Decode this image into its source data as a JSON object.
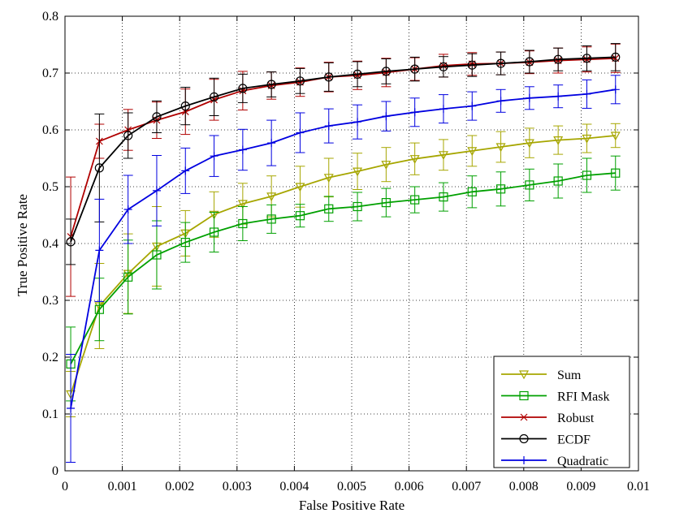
{
  "chart_data": {
    "type": "line",
    "xlabel": "False Positive Rate",
    "ylabel": "True Positive Rate",
    "xlim": [
      0,
      0.01
    ],
    "ylim": [
      0,
      0.8
    ],
    "xticks": [
      "0",
      "0.001",
      "0.002",
      "0.003",
      "0.004",
      "0.005",
      "0.006",
      "0.007",
      "0.008",
      "0.009",
      "0.01"
    ],
    "yticks": [
      "0",
      "0.1",
      "0.2",
      "0.3",
      "0.4",
      "0.5",
      "0.6",
      "0.7",
      "0.8"
    ],
    "grid": true,
    "legend_position": "bottom-right",
    "x": [
      0.0001,
      0.0006,
      0.0011,
      0.0016,
      0.0021,
      0.0026,
      0.0031,
      0.0036,
      0.0041,
      0.0046,
      0.0051,
      0.0056,
      0.0061,
      0.0066,
      0.0071,
      0.0076,
      0.0081,
      0.0086,
      0.0091,
      0.0096
    ],
    "series": [
      {
        "name": "Sum",
        "color": "#a6a600",
        "marker": "triangle-down",
        "values": [
          0.135,
          0.29,
          0.347,
          0.395,
          0.418,
          0.451,
          0.47,
          0.483,
          0.5,
          0.516,
          0.527,
          0.539,
          0.549,
          0.556,
          0.563,
          0.57,
          0.577,
          0.582,
          0.585,
          0.59
        ],
        "errors": [
          0.04,
          0.075,
          0.07,
          0.07,
          0.04,
          0.04,
          0.036,
          0.036,
          0.036,
          0.034,
          0.032,
          0.03,
          0.028,
          0.027,
          0.027,
          0.027,
          0.026,
          0.025,
          0.025,
          0.021
        ]
      },
      {
        "name": "RFI Mask",
        "color": "#00a000",
        "marker": "square",
        "values": [
          0.188,
          0.284,
          0.341,
          0.38,
          0.402,
          0.42,
          0.435,
          0.443,
          0.449,
          0.461,
          0.465,
          0.472,
          0.477,
          0.482,
          0.491,
          0.496,
          0.503,
          0.51,
          0.52,
          0.524
        ],
        "errors": [
          0.065,
          0.055,
          0.065,
          0.06,
          0.035,
          0.035,
          0.03,
          0.025,
          0.02,
          0.022,
          0.025,
          0.025,
          0.023,
          0.025,
          0.028,
          0.03,
          0.028,
          0.03,
          0.03,
          0.03
        ]
      },
      {
        "name": "Robust",
        "color": "#b00000",
        "marker": "x",
        "values": [
          0.412,
          0.58,
          0.6,
          0.617,
          0.632,
          0.653,
          0.669,
          0.678,
          0.684,
          0.693,
          0.696,
          0.701,
          0.707,
          0.713,
          0.716,
          0.717,
          0.719,
          0.722,
          0.724,
          0.726
        ],
        "errors": [
          0.105,
          0.03,
          0.036,
          0.032,
          0.04,
          0.036,
          0.034,
          0.024,
          0.025,
          0.026,
          0.025,
          0.025,
          0.02,
          0.02,
          0.02,
          0.02,
          0.02,
          0.022,
          0.022,
          0.025
        ]
      },
      {
        "name": "ECDF",
        "color": "#000000",
        "marker": "circle",
        "values": [
          0.403,
          0.533,
          0.59,
          0.623,
          0.642,
          0.658,
          0.673,
          0.68,
          0.686,
          0.693,
          0.698,
          0.703,
          0.707,
          0.711,
          0.714,
          0.717,
          0.72,
          0.724,
          0.726,
          0.728
        ],
        "errors": [
          0.04,
          0.095,
          0.04,
          0.028,
          0.033,
          0.033,
          0.025,
          0.022,
          0.022,
          0.025,
          0.022,
          0.022,
          0.021,
          0.018,
          0.02,
          0.02,
          0.02,
          0.02,
          0.022,
          0.024
        ]
      },
      {
        "name": "Quadratic",
        "color": "#0000e0",
        "marker": "plus",
        "values": [
          0.11,
          0.388,
          0.46,
          0.493,
          0.528,
          0.554,
          0.565,
          0.577,
          0.595,
          0.607,
          0.614,
          0.624,
          0.631,
          0.637,
          0.642,
          0.651,
          0.656,
          0.659,
          0.663,
          0.671
        ],
        "errors": [
          0.095,
          0.09,
          0.06,
          0.062,
          0.04,
          0.036,
          0.036,
          0.04,
          0.035,
          0.03,
          0.03,
          0.026,
          0.025,
          0.025,
          0.025,
          0.02,
          0.02,
          0.02,
          0.025,
          0.025
        ]
      }
    ]
  }
}
